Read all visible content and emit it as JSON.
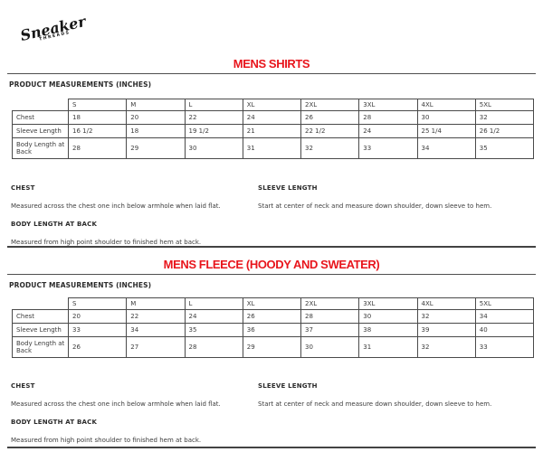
{
  "logo": {
    "name": "Sneaker",
    "subname": "THREADS"
  },
  "colors": {
    "accent_red": "#e8151c",
    "text": "#3d3d3d",
    "line": "#4a4a4a"
  },
  "sections": [
    {
      "title": "MENS SHIRTS",
      "subtitle": "PRODUCT MEASUREMENTS (INCHES)",
      "table": {
        "columns": [
          "S",
          "M",
          "L",
          "XL",
          "2XL",
          "3XL",
          "4XL",
          "5XL"
        ],
        "rows": [
          {
            "label": "Chest",
            "values": [
              "18",
              "20",
              "22",
              "24",
              "26",
              "28",
              "30",
              "32"
            ]
          },
          {
            "label": "Sleeve Length",
            "values": [
              "16 1/2",
              "18",
              "19 1/2",
              "21",
              "22 1/2",
              "24",
              "25 1/4",
              "26 1/2"
            ]
          },
          {
            "label": "Body Length at Back",
            "values": [
              "28",
              "29",
              "30",
              "31",
              "32",
              "33",
              "34",
              "35"
            ]
          }
        ]
      },
      "notes_left": [
        {
          "heading": "CHEST",
          "text": "Measured across the chest one inch below armhole when laid flat."
        },
        {
          "heading": "BODY LENGTH AT BACK",
          "text": "Measured from high point shoulder to finished hem at back."
        }
      ],
      "notes_right": [
        {
          "heading": "SLEEVE LENGTH",
          "text": "Start at center of neck and measure down shoulder, down sleeve to hem."
        }
      ]
    },
    {
      "title": "MENS FLEECE (HOODY AND SWEATER)",
      "subtitle": "PRODUCT MEASUREMENTS (INCHES)",
      "table": {
        "columns": [
          "S",
          "M",
          "L",
          "XL",
          "2XL",
          "3XL",
          "4XL",
          "5XL"
        ],
        "rows": [
          {
            "label": "Chest",
            "values": [
              "20",
              "22",
              "24",
              "26",
              "28",
              "30",
              "32",
              "34"
            ]
          },
          {
            "label": "Sleeve Length",
            "values": [
              "33",
              "34",
              "35",
              "36",
              "37",
              "38",
              "39",
              "40"
            ]
          },
          {
            "label": "Body Length at Back",
            "values": [
              "26",
              "27",
              "28",
              "29",
              "30",
              "31",
              "32",
              "33"
            ]
          }
        ]
      },
      "notes_left": [
        {
          "heading": "CHEST",
          "text": "Measured across the chest one inch below armhole when laid flat."
        },
        {
          "heading": "BODY LENGTH AT BACK",
          "text": "Measured from high point shoulder to finished hem at back."
        }
      ],
      "notes_right": [
        {
          "heading": "SLEEVE LENGTH",
          "text": "Start at center of neck and measure down shoulder, down sleeve to hem."
        }
      ]
    }
  ]
}
